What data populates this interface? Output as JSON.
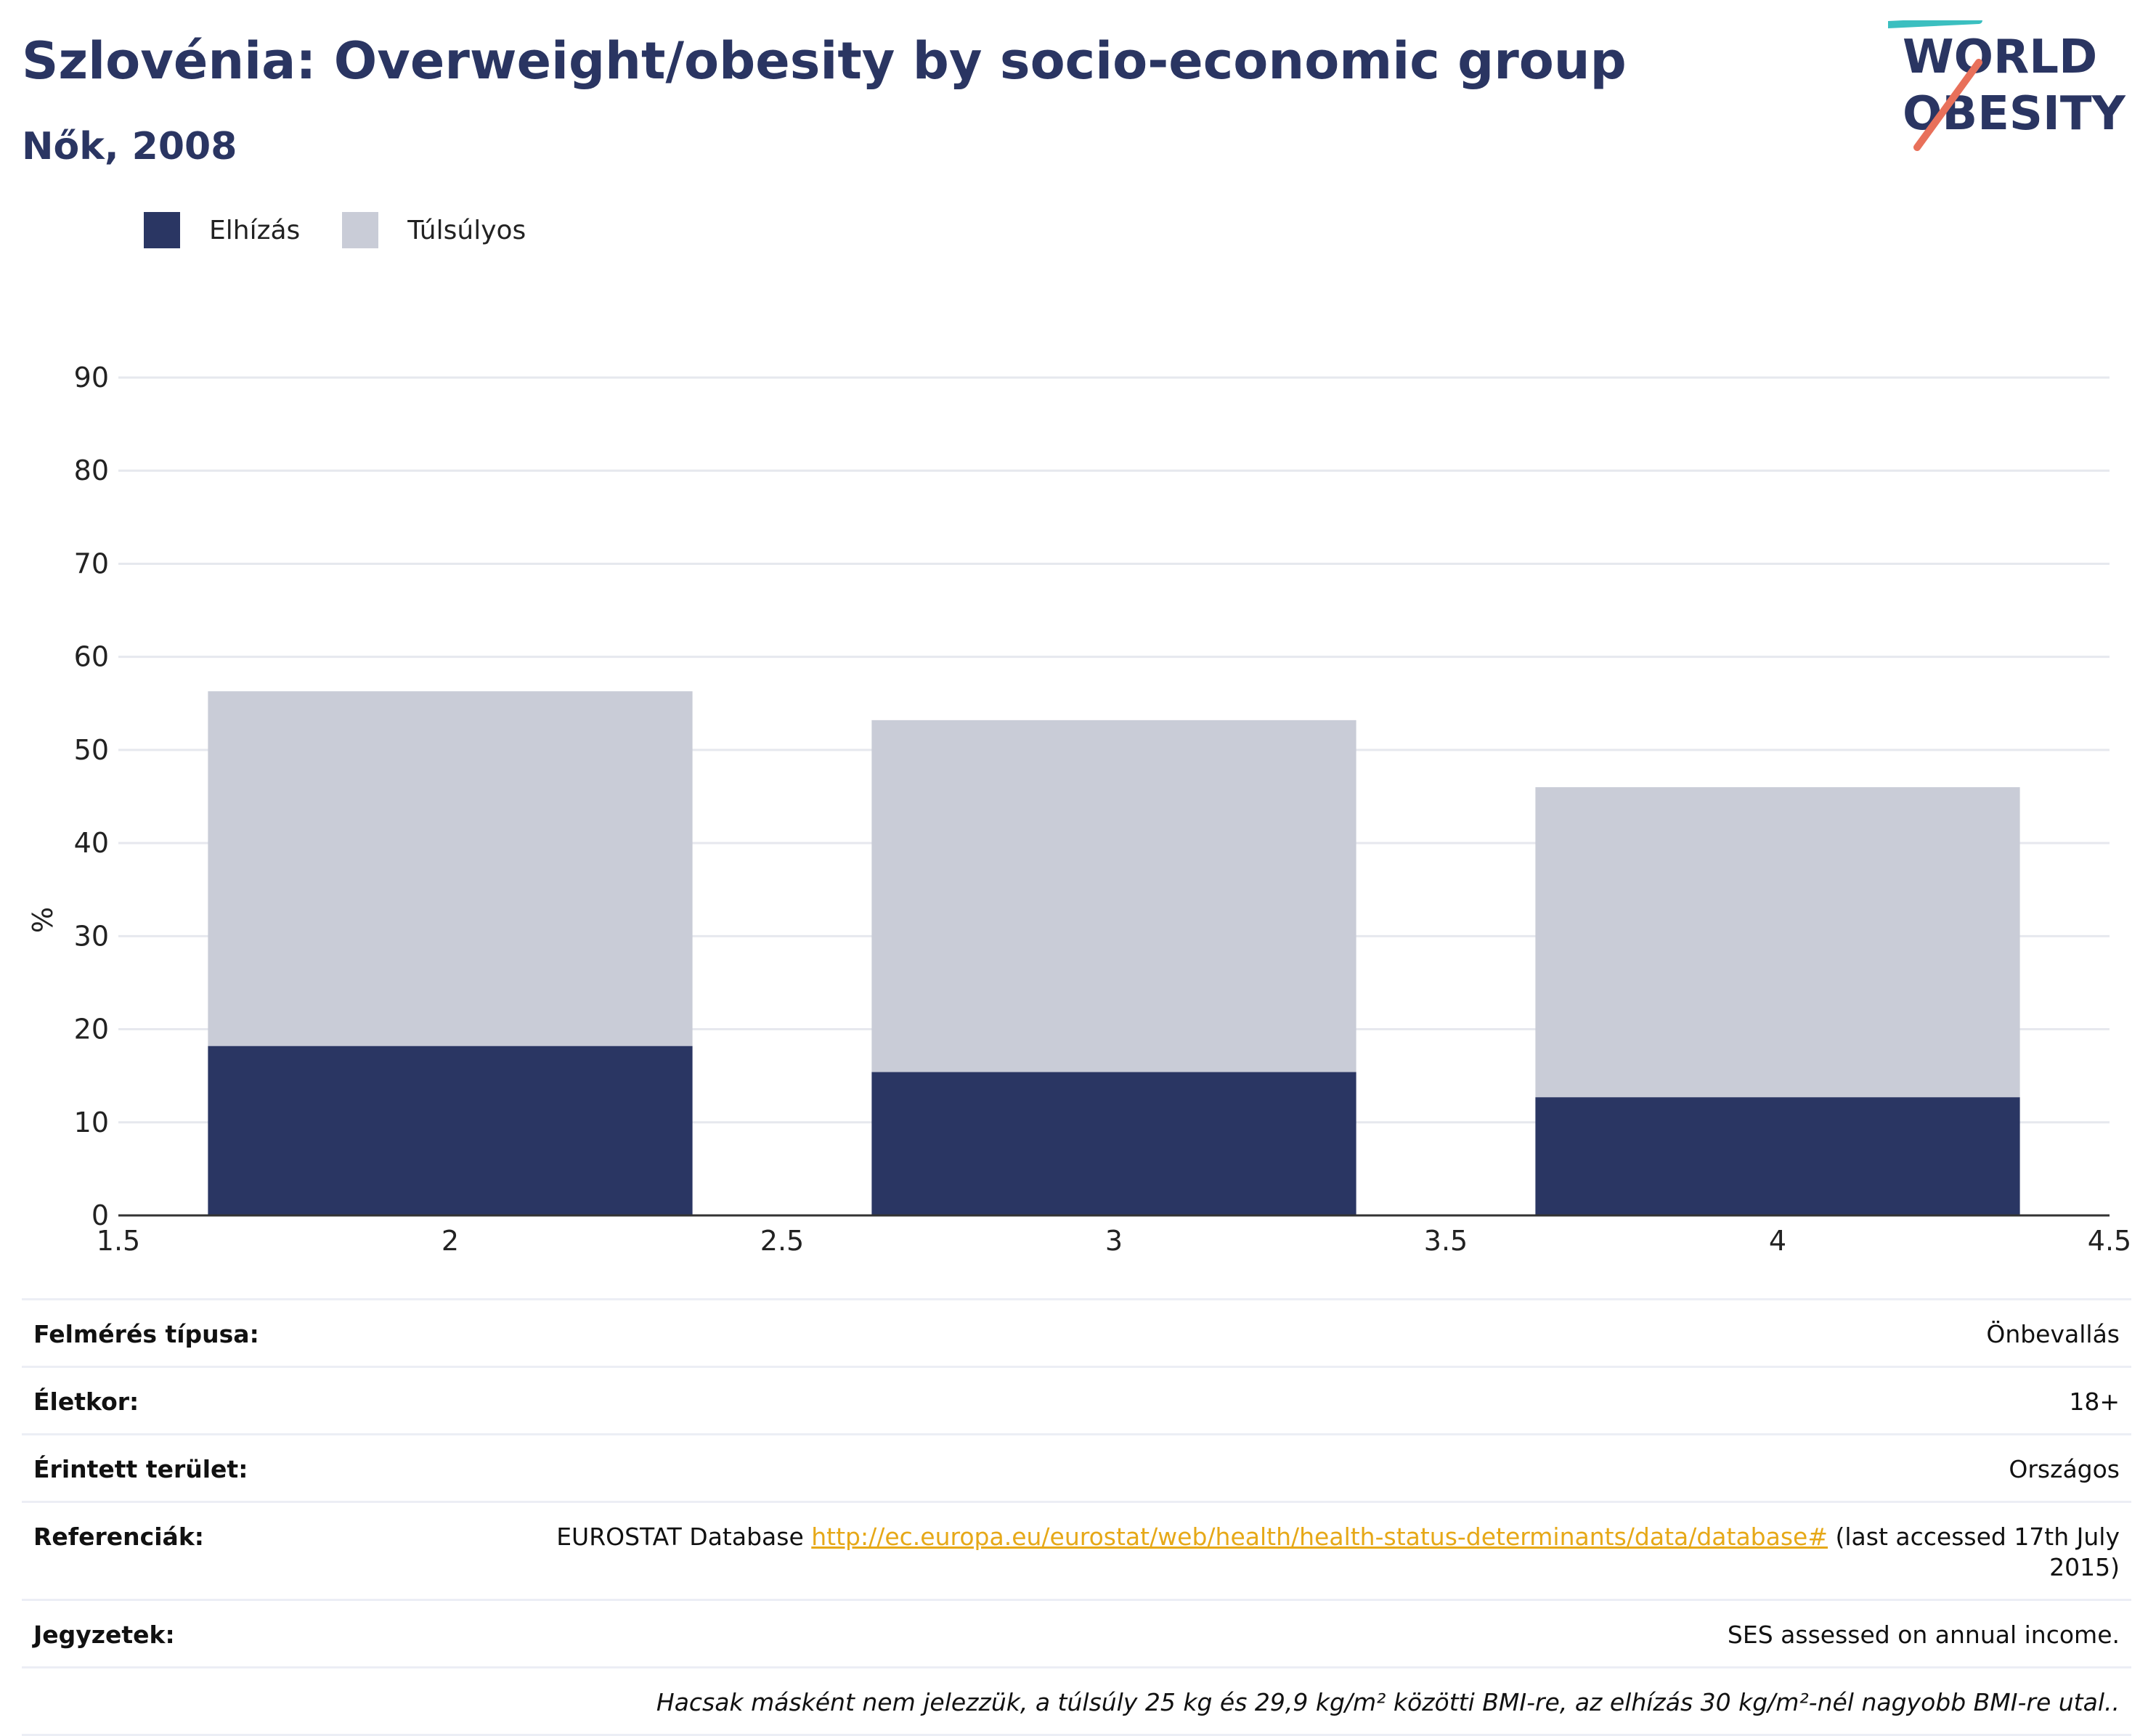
{
  "header": {
    "title": "Szlovénia: Overweight/obesity by socio-economic group",
    "subtitle": "Nők, 2008"
  },
  "logo": {
    "line1": "WORLD",
    "line2": "OBESITY"
  },
  "colors": {
    "obesity": "#2a3663",
    "overweight": "#c9ccd7",
    "title": "#2a3562",
    "link": "#e6a817"
  },
  "chart_data": {
    "type": "bar",
    "stacked": true,
    "x": [
      2,
      3,
      4
    ],
    "series": [
      {
        "name": "Elhízás",
        "values": [
          18.2,
          15.4,
          12.7
        ]
      },
      {
        "name": "Túlsúlyos",
        "values": [
          38.1,
          37.8,
          33.3
        ]
      }
    ],
    "xlim": [
      1.5,
      4.5
    ],
    "xticks": [
      "1.5",
      "2",
      "2.5",
      "3",
      "3.5",
      "4",
      "4.5"
    ],
    "ylim": [
      0,
      90
    ],
    "yticks": [
      "0",
      "10",
      "20",
      "30",
      "40",
      "50",
      "60",
      "70",
      "80",
      "90"
    ],
    "ylabel": "%",
    "xlabel": "",
    "grid": true,
    "legend_position": "top-left"
  },
  "info": {
    "survey_type": {
      "label": "Felmérés típusa:",
      "value": "Önbevallás"
    },
    "age": {
      "label": "Életkor:",
      "value": "18+"
    },
    "area": {
      "label": "Érintett terület:",
      "value": "Országos"
    },
    "references": {
      "label": "Referenciák:",
      "prefix": "EUROSTAT Database ",
      "link": "http://ec.europa.eu/eurostat/web/health/health-status-determinants/data/database#",
      "suffix": " (last accessed 17th July 2015)"
    },
    "notes": {
      "label": "Jegyzetek:",
      "value": "SES assessed on annual income."
    },
    "footnote": "Hacsak másként nem jelezzük, a túlsúly 25 kg és 29,9 kg/m² közötti BMI-re, az elhízás 30 kg/m²-nél nagyobb BMI-re utal.."
  }
}
